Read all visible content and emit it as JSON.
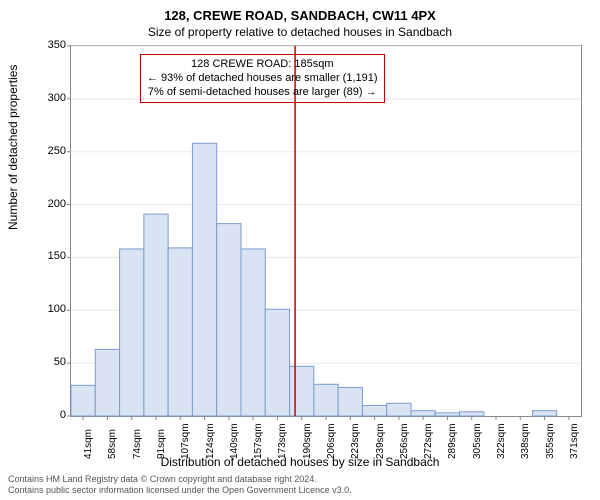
{
  "titles": {
    "main": "128, CREWE ROAD, SANDBACH, CW11 4PX",
    "sub": "Size of property relative to detached houses in Sandbach"
  },
  "axes": {
    "y_label": "Number of detached properties",
    "x_label": "Distribution of detached houses by size in Sandbach"
  },
  "chart": {
    "type": "histogram",
    "y_min": 0,
    "y_max": 350,
    "y_tick_step": 50,
    "categories": [
      "41sqm",
      "58sqm",
      "74sqm",
      "91sqm",
      "107sqm",
      "124sqm",
      "140sqm",
      "157sqm",
      "173sqm",
      "190sqm",
      "206sqm",
      "223sqm",
      "239sqm",
      "256sqm",
      "272sqm",
      "289sqm",
      "305sqm",
      "322sqm",
      "338sqm",
      "355sqm",
      "371sqm"
    ],
    "values": [
      29,
      63,
      158,
      191,
      159,
      258,
      182,
      158,
      101,
      47,
      30,
      27,
      10,
      12,
      5,
      3,
      4,
      0,
      0,
      5,
      0
    ],
    "bar_fill": "#d9e3f3",
    "bar_stroke": "#7a9ccf",
    "grid_color": "#e8e8e8",
    "bg_color": "#ffffff",
    "axis_color": "#888888",
    "reference_line_value": 185,
    "reference_line_color": "#cc0000"
  },
  "callout": {
    "line1": "128 CREWE ROAD: 185sqm",
    "line2": "← 93% of detached houses are smaller (1,191)",
    "line3": "7% of semi-detached houses are larger (89) →",
    "border_color": "#cc0000"
  },
  "footer": {
    "line1": "Contains HM Land Registry data © Crown copyright and database right 2024.",
    "line2": "Contains public sector information licensed under the Open Government Licence v3.0."
  }
}
